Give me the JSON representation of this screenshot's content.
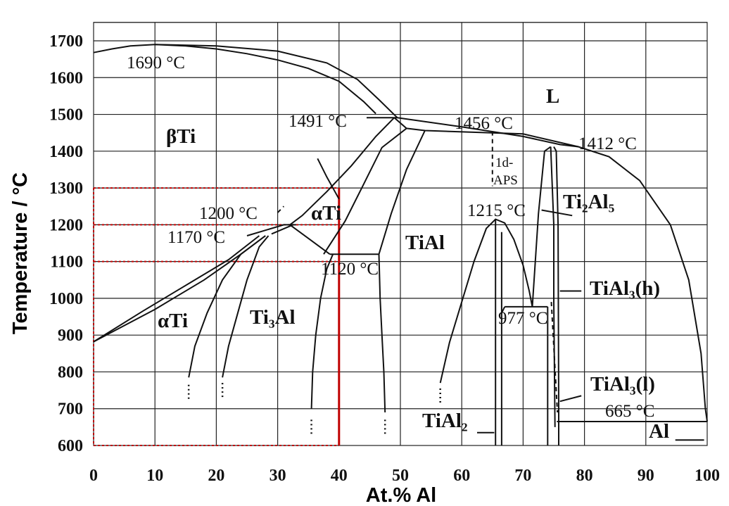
{
  "chart_data": {
    "type": "phase-diagram",
    "xlabel": "At.% Al",
    "ylabel": "Temperature / °C",
    "xlim": [
      0,
      100
    ],
    "ylim": [
      600,
      1750
    ],
    "x_ticks": [
      "0",
      "10",
      "20",
      "30",
      "40",
      "50",
      "60",
      "70",
      "80",
      "90",
      "100"
    ],
    "y_ticks": [
      "600",
      "700",
      "800",
      "900",
      "1000",
      "1100",
      "1200",
      "1300",
      "1400",
      "1500",
      "1600",
      "1700"
    ],
    "grid": true,
    "temperature_labels": [
      "1690 °C",
      "1491 °C",
      "1456 °C",
      "1412 °C",
      "1200 °C",
      "1170 °C",
      "1215 °C",
      "1120 °C",
      "977 °C",
      "665 °C"
    ],
    "phase_labels": [
      "L",
      "βTi",
      "αTi",
      "αTi",
      "TiAl",
      "Ti₃Al",
      "1d-",
      "APS",
      "Ti₂Al₅",
      "TiAl₃(h)",
      "TiAl₃(l)",
      "TiAl₂",
      "Al"
    ],
    "key_points": [
      {
        "label": "1690 °C",
        "x": 10,
        "y": 1690
      },
      {
        "label": "1491 °C",
        "x": 45,
        "y": 1491
      },
      {
        "label": "1456 °C",
        "x": 65,
        "y": 1456
      },
      {
        "label": "1412 °C",
        "x": 79,
        "y": 1412
      },
      {
        "label": "1200 °C",
        "x": 32,
        "y": 1200
      },
      {
        "label": "1170 °C",
        "x": 27,
        "y": 1170
      },
      {
        "label": "1215 °C",
        "x": 65.5,
        "y": 1215
      },
      {
        "label": "1120 °C",
        "x": 38.5,
        "y": 1120
      },
      {
        "label": "977 °C",
        "x": 71.5,
        "y": 977
      },
      {
        "label": "665 °C",
        "x": 88,
        "y": 665
      }
    ],
    "highlighted_region": {
      "x_range": [
        0,
        40
      ],
      "temperature_lines": [
        1300,
        1200,
        1100,
        600
      ]
    }
  }
}
